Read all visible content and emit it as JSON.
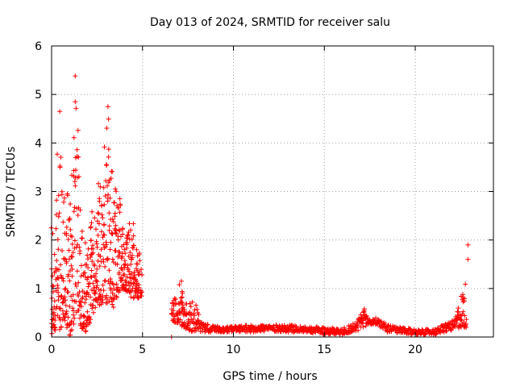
{
  "chart_data": {
    "type": "scatter",
    "title": "Day 013 of 2024, SRMTID for receiver salu",
    "xlabel": "GPS time / hours",
    "ylabel": "SRMTID / TECUs",
    "xlim": [
      0,
      24.3
    ],
    "ylim": [
      0,
      6
    ],
    "xticks": [
      0,
      5,
      10,
      15,
      20
    ],
    "yticks": [
      0,
      1,
      2,
      3,
      4,
      5,
      6
    ],
    "grid": true,
    "marker": "+",
    "colors": {
      "series": "#ff0000",
      "grid": "#a0a0a0",
      "axis": "#000000"
    },
    "envelope": [
      {
        "x": 0.0,
        "lo": 0.0,
        "hi": 2.6
      },
      {
        "x": 0.2,
        "lo": 0.0,
        "hi": 2.6
      },
      {
        "x": 0.4,
        "lo": 0.1,
        "hi": 4.7
      },
      {
        "x": 0.7,
        "lo": 0.3,
        "hi": 2.9
      },
      {
        "x": 1.0,
        "lo": 0.0,
        "hi": 3.0
      },
      {
        "x": 1.3,
        "lo": 0.3,
        "hi": 5.4
      },
      {
        "x": 1.6,
        "lo": 0.2,
        "hi": 3.0
      },
      {
        "x": 1.9,
        "lo": 0.1,
        "hi": 1.7
      },
      {
        "x": 2.2,
        "lo": 0.4,
        "hi": 2.5
      },
      {
        "x": 2.5,
        "lo": 0.6,
        "hi": 3.2
      },
      {
        "x": 2.8,
        "lo": 0.7,
        "hi": 3.5
      },
      {
        "x": 3.1,
        "lo": 0.7,
        "hi": 4.7
      },
      {
        "x": 3.4,
        "lo": 0.6,
        "hi": 3.0
      },
      {
        "x": 3.7,
        "lo": 0.9,
        "hi": 3.2
      },
      {
        "x": 4.0,
        "lo": 1.0,
        "hi": 2.2
      },
      {
        "x": 4.4,
        "lo": 0.8,
        "hi": 2.6
      },
      {
        "x": 4.7,
        "lo": 0.8,
        "hi": 2.0
      },
      {
        "x": 5.0,
        "lo": 0.8,
        "hi": 1.5
      },
      {
        "x": 5.01,
        "lo": null,
        "hi": null
      },
      {
        "x": 6.6,
        "lo": 0.3,
        "hi": 0.7
      },
      {
        "x": 6.9,
        "lo": 0.3,
        "hi": 0.9
      },
      {
        "x": 7.2,
        "lo": 0.2,
        "hi": 1.3
      },
      {
        "x": 7.5,
        "lo": 0.15,
        "hi": 0.6
      },
      {
        "x": 7.8,
        "lo": 0.1,
        "hi": 0.9
      },
      {
        "x": 8.2,
        "lo": 0.1,
        "hi": 0.3
      },
      {
        "x": 9.0,
        "lo": 0.1,
        "hi": 0.22
      },
      {
        "x": 10.0,
        "lo": 0.1,
        "hi": 0.22
      },
      {
        "x": 11.0,
        "lo": 0.1,
        "hi": 0.25
      },
      {
        "x": 12.0,
        "lo": 0.12,
        "hi": 0.25
      },
      {
        "x": 13.0,
        "lo": 0.1,
        "hi": 0.25
      },
      {
        "x": 14.0,
        "lo": 0.1,
        "hi": 0.22
      },
      {
        "x": 15.0,
        "lo": 0.05,
        "hi": 0.2
      },
      {
        "x": 16.0,
        "lo": 0.05,
        "hi": 0.18
      },
      {
        "x": 16.7,
        "lo": 0.1,
        "hi": 0.3
      },
      {
        "x": 17.2,
        "lo": 0.2,
        "hi": 0.58
      },
      {
        "x": 17.5,
        "lo": 0.25,
        "hi": 0.35
      },
      {
        "x": 17.9,
        "lo": 0.25,
        "hi": 0.4
      },
      {
        "x": 18.5,
        "lo": 0.1,
        "hi": 0.25
      },
      {
        "x": 19.5,
        "lo": 0.05,
        "hi": 0.18
      },
      {
        "x": 20.5,
        "lo": 0.05,
        "hi": 0.15
      },
      {
        "x": 21.2,
        "lo": 0.05,
        "hi": 0.18
      },
      {
        "x": 21.7,
        "lo": 0.1,
        "hi": 0.3
      },
      {
        "x": 22.2,
        "lo": 0.15,
        "hi": 0.35
      },
      {
        "x": 22.5,
        "lo": 0.2,
        "hi": 0.9
      },
      {
        "x": 22.8,
        "lo": 0.2,
        "hi": 1.2
      }
    ],
    "notable_points": [
      {
        "x": 1.3,
        "y": 5.38
      },
      {
        "x": 1.3,
        "y": 4.85
      },
      {
        "x": 0.45,
        "y": 4.65
      },
      {
        "x": 3.1,
        "y": 4.75
      },
      {
        "x": 6.6,
        "y": 0.0
      },
      {
        "x": 22.9,
        "y": 1.9
      },
      {
        "x": 22.9,
        "y": 1.6
      },
      {
        "x": 17.2,
        "y": 0.58
      }
    ]
  }
}
